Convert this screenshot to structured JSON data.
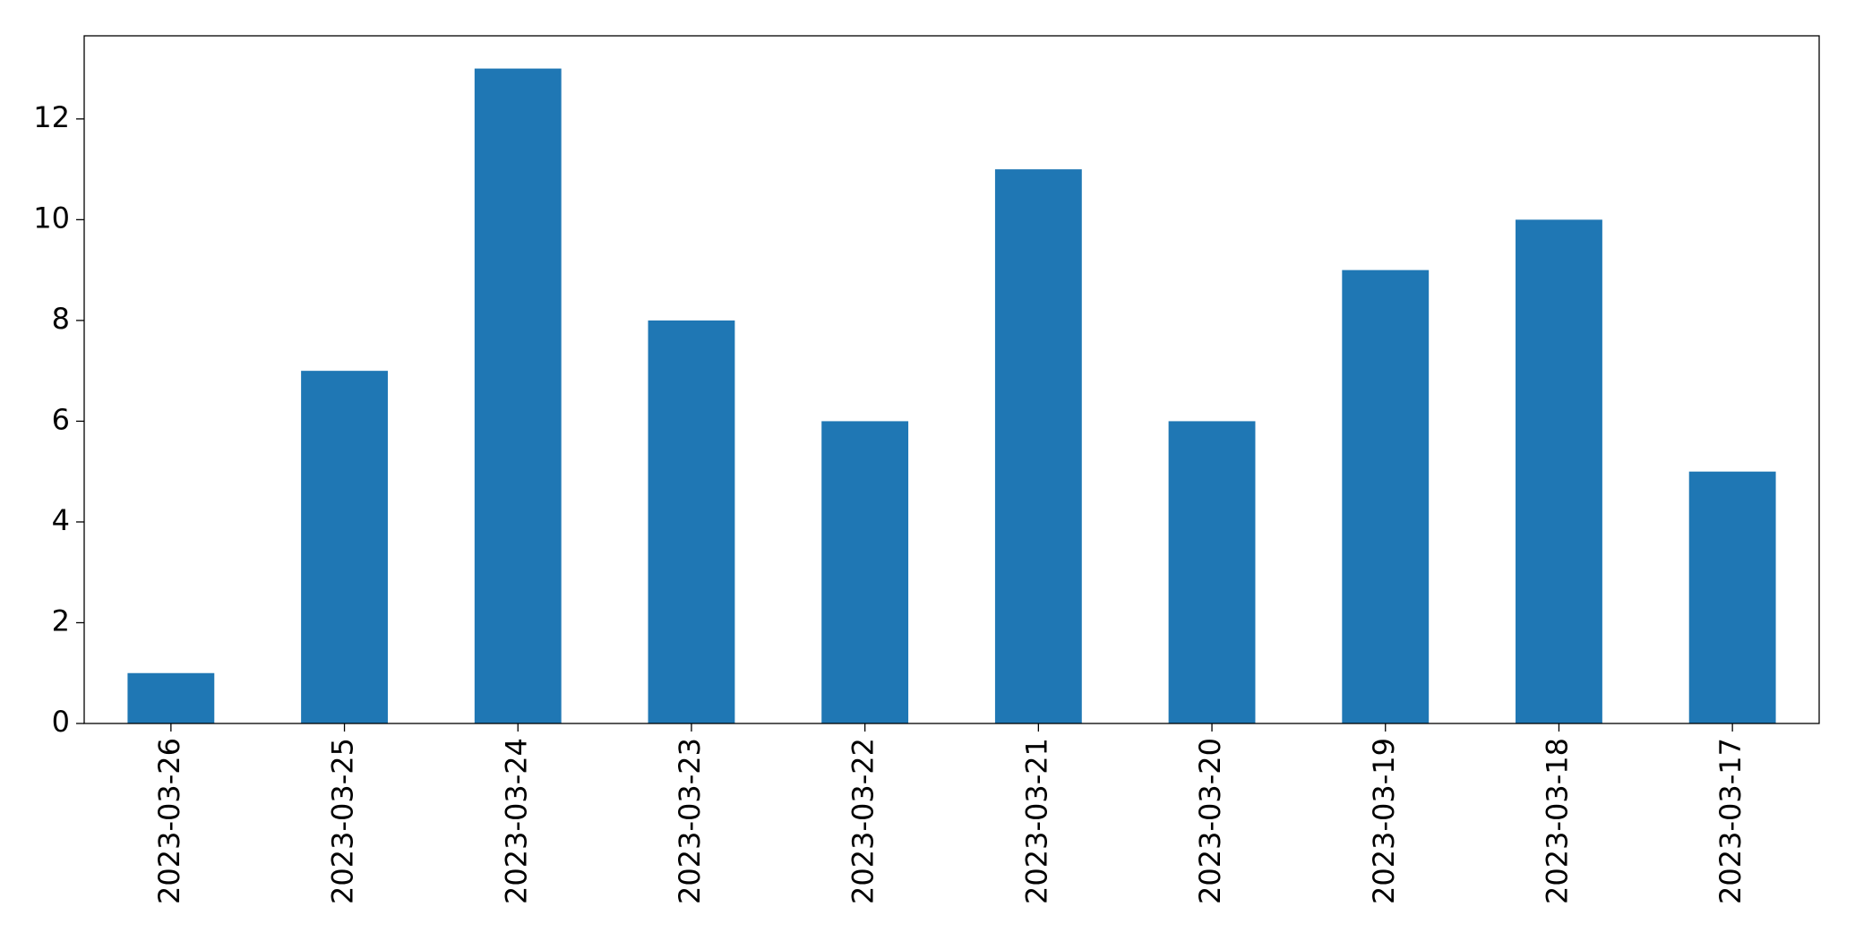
{
  "chart_data": {
    "type": "bar",
    "categories": [
      "2023-03-26",
      "2023-03-25",
      "2023-03-24",
      "2023-03-23",
      "2023-03-22",
      "2023-03-21",
      "2023-03-20",
      "2023-03-19",
      "2023-03-18",
      "2023-03-17"
    ],
    "values": [
      1,
      7,
      13,
      8,
      6,
      11,
      6,
      9,
      10,
      5
    ],
    "color": "#1f77b4",
    "ylim": [
      0,
      13.65
    ],
    "yticks": [
      0,
      2,
      4,
      6,
      8,
      10,
      12
    ],
    "grid": false
  }
}
